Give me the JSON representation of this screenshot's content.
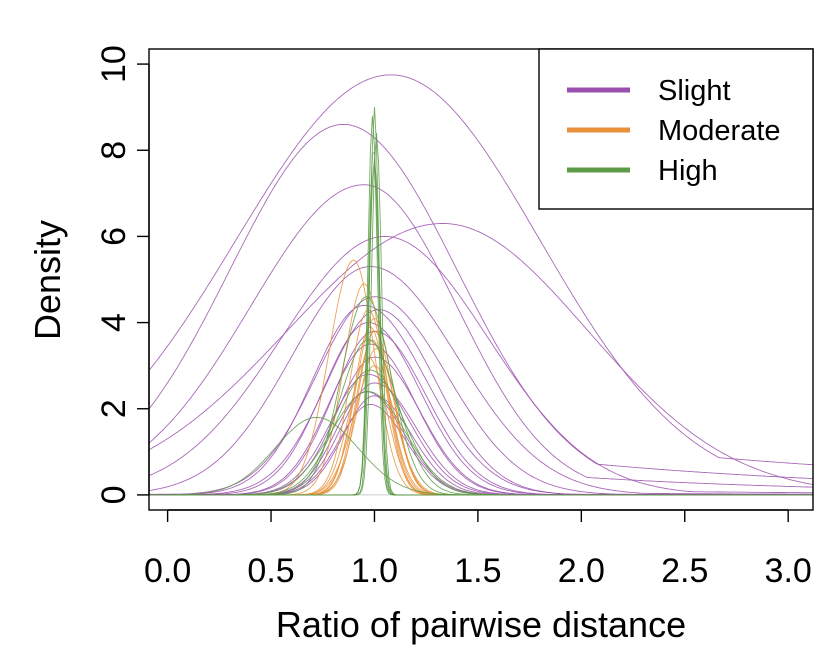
{
  "chart_data": {
    "type": "line",
    "title": "",
    "xlabel": "Ratio of pairwise distance",
    "ylabel": "Density",
    "xlim": [
      -0.09,
      3.12
    ],
    "ylim": [
      -0.35,
      10.35
    ],
    "xticks": [
      0.0,
      0.5,
      1.0,
      1.5,
      2.0,
      2.5,
      3.0
    ],
    "xtick_labels": [
      "0.0",
      "0.5",
      "1.0",
      "1.5",
      "2.0",
      "2.5",
      "3.0"
    ],
    "yticks": [
      0,
      2,
      4,
      6,
      8,
      10
    ],
    "ytick_labels": [
      "0",
      "2",
      "4",
      "6",
      "8",
      "10"
    ],
    "grid": false,
    "legend_position": "top-right",
    "legend": [
      {
        "label": "Slight",
        "color": "#9a4fad"
      },
      {
        "label": "Moderate",
        "color": "#e8913a"
      },
      {
        "label": "High",
        "color": "#5c9a45"
      }
    ],
    "groups": [
      {
        "name": "Slight",
        "color": "#9a4fad",
        "profiles": [
          {
            "peak": 9.75,
            "center": 1.08,
            "left": 0.75,
            "right": 0.72,
            "base": 1.8
          },
          {
            "peak": 8.6,
            "center": 0.85,
            "left": 0.55,
            "right": 0.55,
            "base": 1.5
          },
          {
            "peak": 7.2,
            "center": 0.95,
            "left": 0.55,
            "right": 0.45,
            "base": 0.9
          },
          {
            "peak": 6.3,
            "center": 1.33,
            "left": 0.75,
            "right": 0.7,
            "base": 0.3
          },
          {
            "peak": 6.0,
            "center": 1.05,
            "left": 0.5,
            "right": 0.5,
            "base": 0.2
          },
          {
            "peak": 5.3,
            "center": 0.98,
            "left": 0.38,
            "right": 0.42,
            "base": 0.1
          },
          {
            "peak": 4.6,
            "center": 1.0,
            "left": 0.28,
            "right": 0.35,
            "base": 0.05
          },
          {
            "peak": 4.4,
            "center": 0.95,
            "left": 0.25,
            "right": 0.3,
            "base": 0.05
          },
          {
            "peak": 4.3,
            "center": 1.02,
            "left": 0.25,
            "right": 0.28,
            "base": 0.02
          },
          {
            "peak": 4.0,
            "center": 0.97,
            "left": 0.22,
            "right": 0.25,
            "base": 0.02
          },
          {
            "peak": 3.8,
            "center": 1.0,
            "left": 0.2,
            "right": 0.25,
            "base": 0.02
          },
          {
            "peak": 3.5,
            "center": 0.98,
            "left": 0.2,
            "right": 0.22,
            "base": 0.02
          },
          {
            "peak": 3.2,
            "center": 1.0,
            "left": 0.18,
            "right": 0.22,
            "base": 0.02
          },
          {
            "peak": 2.8,
            "center": 0.97,
            "left": 0.18,
            "right": 0.2,
            "base": 0.02
          },
          {
            "peak": 2.6,
            "center": 1.0,
            "left": 0.16,
            "right": 0.2,
            "base": 0.02
          },
          {
            "peak": 2.4,
            "center": 0.96,
            "left": 0.15,
            "right": 0.18,
            "base": 0.02
          },
          {
            "peak": 2.3,
            "center": 1.0,
            "left": 0.15,
            "right": 0.18,
            "base": 0.02
          },
          {
            "peak": 2.1,
            "center": 0.98,
            "left": 0.15,
            "right": 0.17,
            "base": 0.02
          }
        ]
      },
      {
        "name": "Moderate",
        "color": "#e8913a",
        "profiles": [
          {
            "peak": 5.45,
            "center": 0.9,
            "left": 0.12,
            "right": 0.1,
            "base": 0.0
          },
          {
            "peak": 4.9,
            "center": 0.95,
            "left": 0.1,
            "right": 0.1,
            "base": 0.0
          },
          {
            "peak": 4.3,
            "center": 0.97,
            "left": 0.09,
            "right": 0.09,
            "base": 0.0
          },
          {
            "peak": 4.1,
            "center": 1.0,
            "left": 0.09,
            "right": 0.09,
            "base": 0.0
          },
          {
            "peak": 3.9,
            "center": 0.98,
            "left": 0.08,
            "right": 0.08,
            "base": 0.0
          },
          {
            "peak": 3.8,
            "center": 1.0,
            "left": 0.08,
            "right": 0.09,
            "base": 0.0
          },
          {
            "peak": 3.6,
            "center": 0.99,
            "left": 0.08,
            "right": 0.08,
            "base": 0.0
          },
          {
            "peak": 3.4,
            "center": 1.01,
            "left": 0.09,
            "right": 0.09,
            "base": 0.0
          },
          {
            "peak": 3.2,
            "center": 0.97,
            "left": 0.09,
            "right": 0.09,
            "base": 0.0
          },
          {
            "peak": 3.0,
            "center": 1.0,
            "left": 0.1,
            "right": 0.1,
            "base": 0.0
          }
        ]
      },
      {
        "name": "High",
        "color": "#5c9a45",
        "profiles": [
          {
            "peak": 9.0,
            "center": 1.0,
            "left": 0.022,
            "right": 0.022,
            "base": 0.0
          },
          {
            "peak": 8.8,
            "center": 0.99,
            "left": 0.022,
            "right": 0.024,
            "base": 0.0
          },
          {
            "peak": 8.4,
            "center": 1.01,
            "left": 0.024,
            "right": 0.024,
            "base": 0.0
          },
          {
            "peak": 8.1,
            "center": 0.995,
            "left": 0.024,
            "right": 0.026,
            "base": 0.0
          },
          {
            "peak": 7.8,
            "center": 1.0,
            "left": 0.026,
            "right": 0.026,
            "base": 0.0
          },
          {
            "peak": 4.6,
            "center": 0.96,
            "left": 0.12,
            "right": 0.12,
            "base": 0.0
          },
          {
            "peak": 3.6,
            "center": 0.97,
            "left": 0.14,
            "right": 0.14,
            "base": 0.0
          },
          {
            "peak": 2.9,
            "center": 0.98,
            "left": 0.16,
            "right": 0.16,
            "base": 0.0
          },
          {
            "peak": 2.4,
            "center": 0.97,
            "left": 0.18,
            "right": 0.18,
            "base": 0.0
          },
          {
            "peak": 1.8,
            "center": 0.72,
            "left": 0.2,
            "right": 0.2,
            "base": 0.0
          }
        ]
      }
    ]
  }
}
